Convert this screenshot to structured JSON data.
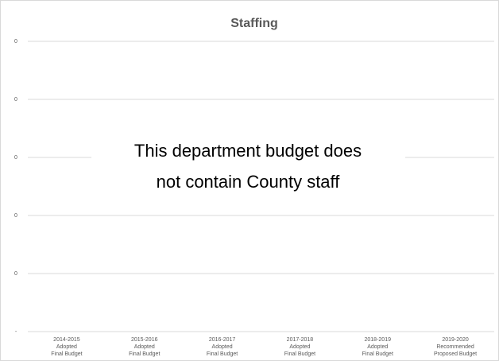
{
  "chart_data": {
    "type": "bar",
    "title": "Staffing",
    "categories": [
      [
        "2014-2015",
        "Adopted",
        "Final Budget"
      ],
      [
        "2015-2016",
        "Adopted",
        "Final Budget"
      ],
      [
        "2016-2017",
        "Adopted",
        "Final Budget"
      ],
      [
        "2017-2018",
        "Adopted",
        "Final Budget"
      ],
      [
        "2018-2019",
        "Adopted",
        "Final Budget"
      ],
      [
        "2019-2020",
        "Recommended",
        "Proposed Budget"
      ]
    ],
    "ylim": [
      0,
      1
    ],
    "yticks": [
      {
        "value": 0,
        "label": "-"
      },
      {
        "value": 0.2,
        "label": "0"
      },
      {
        "value": 0.4,
        "label": "0"
      },
      {
        "value": 0.6,
        "label": "0"
      },
      {
        "value": 0.8,
        "label": "0"
      },
      {
        "value": 1,
        "label": "0"
      }
    ],
    "grid": true,
    "annotation": [
      "This department budget does",
      "not contain County staff"
    ]
  }
}
